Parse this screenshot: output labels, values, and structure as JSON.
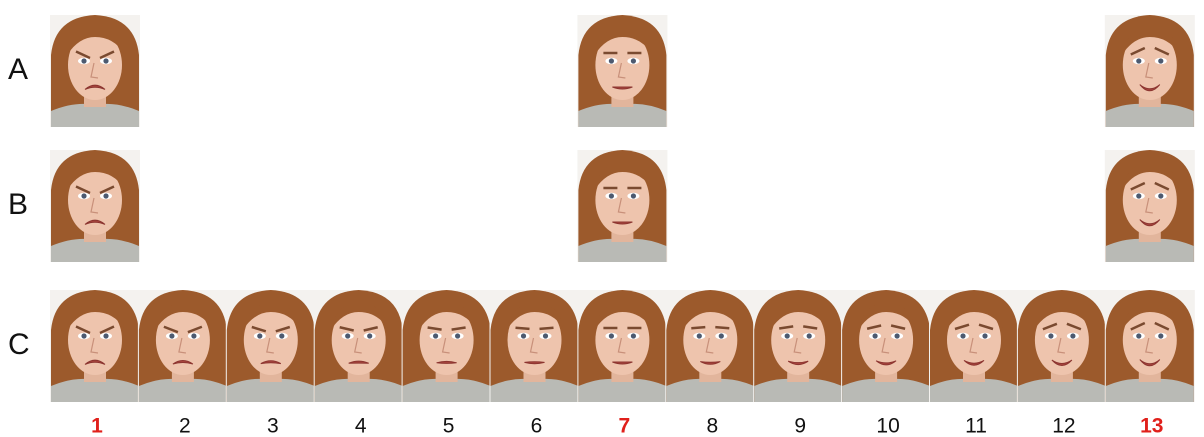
{
  "rows": [
    {
      "label": "A"
    },
    {
      "label": "B"
    },
    {
      "label": "C"
    }
  ],
  "columns": [
    {
      "label": 1,
      "highlight": true
    },
    {
      "label": 2,
      "highlight": false
    },
    {
      "label": 3,
      "highlight": false
    },
    {
      "label": 4,
      "highlight": false
    },
    {
      "label": 5,
      "highlight": false
    },
    {
      "label": 6,
      "highlight": false
    },
    {
      "label": 7,
      "highlight": true
    },
    {
      "label": 8,
      "highlight": false
    },
    {
      "label": 9,
      "highlight": false
    },
    {
      "label": 10,
      "highlight": false
    },
    {
      "label": 11,
      "highlight": false
    },
    {
      "label": 12,
      "highlight": false
    },
    {
      "label": 13,
      "highlight": true
    }
  ],
  "highlight_color": "#e0201b"
}
